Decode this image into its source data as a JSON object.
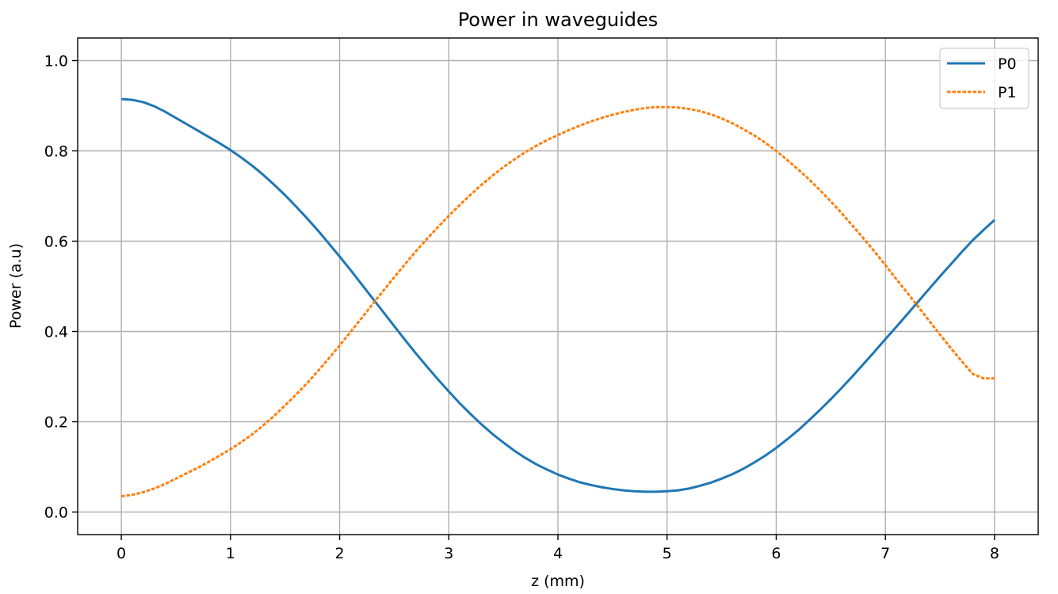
{
  "chart_data": {
    "type": "line",
    "title": "Power in waveguides",
    "xlabel": "z (mm)",
    "ylabel": "Power (a.u)",
    "xlim": [
      -0.4,
      8.4
    ],
    "ylim": [
      -0.05,
      1.05
    ],
    "xticks": [
      0,
      1,
      2,
      3,
      4,
      5,
      6,
      7,
      8
    ],
    "xtick_labels": [
      "0",
      "1",
      "2",
      "3",
      "4",
      "5",
      "6",
      "7",
      "8"
    ],
    "yticks": [
      0.0,
      0.2,
      0.4,
      0.6,
      0.8,
      1.0
    ],
    "ytick_labels": [
      "0.0",
      "0.2",
      "0.4",
      "0.6",
      "0.8",
      "1.0"
    ],
    "grid": true,
    "legend_position": "top-right",
    "x": [
      0,
      0.1,
      0.2,
      0.3,
      0.4,
      0.5,
      0.6,
      0.7,
      0.8,
      0.9,
      1.0,
      1.1,
      1.2,
      1.3,
      1.4,
      1.5,
      1.6,
      1.7,
      1.8,
      1.9,
      2.0,
      2.1,
      2.2,
      2.3,
      2.4,
      2.5,
      2.6,
      2.7,
      2.8,
      2.9,
      3.0,
      3.1,
      3.2,
      3.3,
      3.4,
      3.5,
      3.6,
      3.7,
      3.8,
      3.9,
      4.0,
      4.1,
      4.2,
      4.3,
      4.4,
      4.5,
      4.6,
      4.7,
      4.8,
      4.9,
      5.0,
      5.1,
      5.2,
      5.3,
      5.4,
      5.5,
      5.6,
      5.7,
      5.8,
      5.9,
      6.0,
      6.1,
      6.2,
      6.3,
      6.4,
      6.5,
      6.6,
      6.7,
      6.8,
      6.9,
      7.0,
      7.1,
      7.2,
      7.3,
      7.4,
      7.5,
      7.6,
      7.7,
      7.8,
      7.9,
      8.0
    ],
    "series": [
      {
        "name": "P0",
        "color": "#1f77b4",
        "style": "solid",
        "values": [
          0.915,
          0.913,
          0.908,
          0.899,
          0.887,
          0.873,
          0.859,
          0.845,
          0.831,
          0.817,
          0.802,
          0.785,
          0.767,
          0.747,
          0.725,
          0.702,
          0.677,
          0.651,
          0.624,
          0.595,
          0.566,
          0.536,
          0.505,
          0.474,
          0.443,
          0.412,
          0.381,
          0.351,
          0.322,
          0.294,
          0.267,
          0.241,
          0.217,
          0.194,
          0.173,
          0.154,
          0.136,
          0.12,
          0.106,
          0.094,
          0.083,
          0.074,
          0.066,
          0.06,
          0.055,
          0.051,
          0.048,
          0.046,
          0.045,
          0.045,
          0.046,
          0.048,
          0.052,
          0.058,
          0.065,
          0.074,
          0.084,
          0.096,
          0.11,
          0.125,
          0.142,
          0.161,
          0.181,
          0.203,
          0.226,
          0.25,
          0.275,
          0.301,
          0.328,
          0.355,
          0.383,
          0.41,
          0.438,
          0.466,
          0.494,
          0.522,
          0.549,
          0.576,
          0.602,
          0.625,
          0.647
        ]
      },
      {
        "name": "P1",
        "color": "#ff7f0e",
        "style": "dashed",
        "values": [
          0.035,
          0.038,
          0.044,
          0.052,
          0.062,
          0.074,
          0.086,
          0.098,
          0.111,
          0.125,
          0.139,
          0.155,
          0.172,
          0.192,
          0.213,
          0.236,
          0.26,
          0.285,
          0.312,
          0.34,
          0.369,
          0.399,
          0.429,
          0.46,
          0.49,
          0.52,
          0.549,
          0.578,
          0.605,
          0.631,
          0.656,
          0.68,
          0.703,
          0.725,
          0.745,
          0.764,
          0.781,
          0.797,
          0.811,
          0.824,
          0.835,
          0.846,
          0.856,
          0.865,
          0.873,
          0.88,
          0.886,
          0.891,
          0.895,
          0.897,
          0.897,
          0.896,
          0.893,
          0.888,
          0.881,
          0.872,
          0.861,
          0.848,
          0.834,
          0.818,
          0.8,
          0.78,
          0.759,
          0.737,
          0.713,
          0.688,
          0.662,
          0.634,
          0.606,
          0.577,
          0.547,
          0.516,
          0.486,
          0.455,
          0.424,
          0.393,
          0.363,
          0.334,
          0.306,
          0.296,
          0.296
        ]
      }
    ]
  }
}
